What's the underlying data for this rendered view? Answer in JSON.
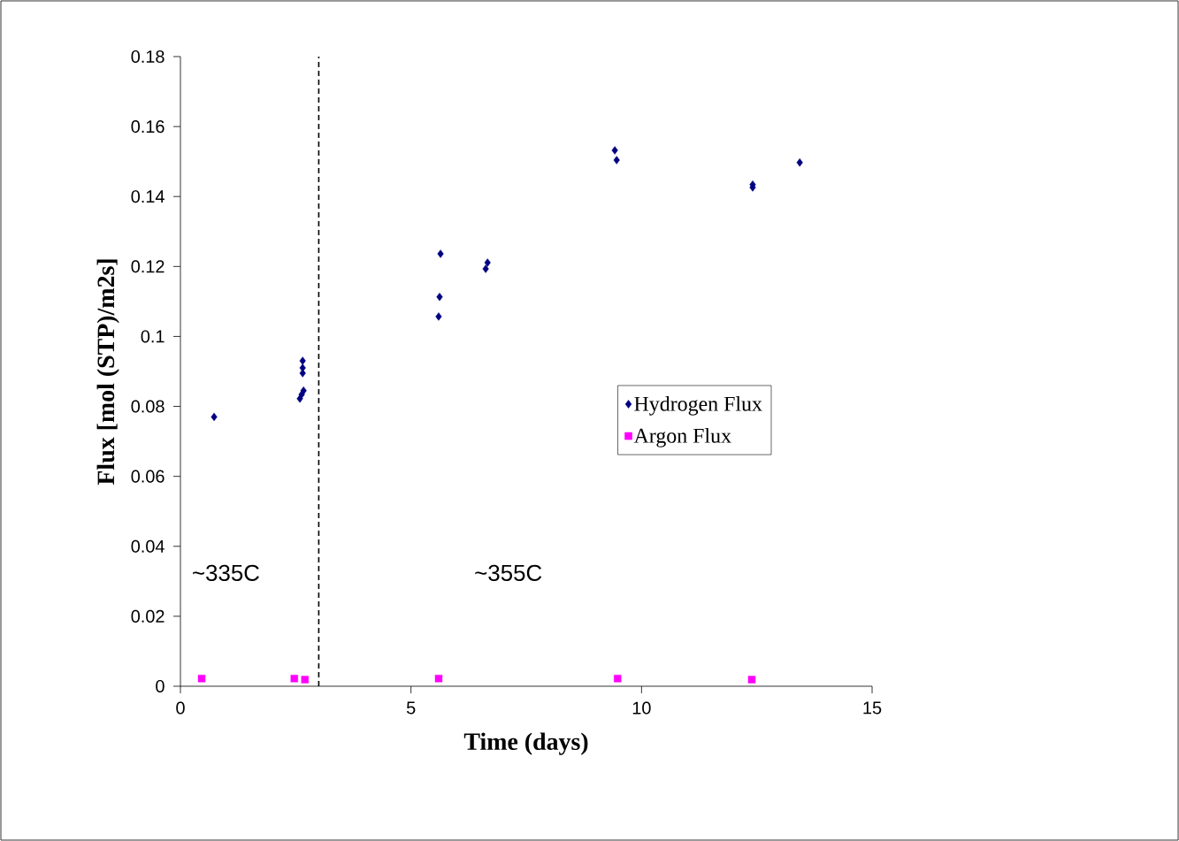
{
  "chart_data": {
    "type": "scatter",
    "xlabel": "Time (days)",
    "ylabel": "Flux [mol (STP)/m2s]",
    "xlim": [
      0,
      15
    ],
    "ylim": [
      0,
      0.18
    ],
    "xticks": [
      0,
      5,
      10,
      15
    ],
    "yticks": [
      0,
      0.02,
      0.04,
      0.06,
      0.08,
      0.1,
      0.12,
      0.14,
      0.16,
      0.18
    ],
    "grid": false,
    "legend": "right",
    "ref_lines": [
      {
        "axis": "x",
        "value": 3,
        "line_style": "dashed",
        "color": "#000000"
      }
    ],
    "annotations": [
      "~335C",
      "~355C"
    ],
    "series": [
      {
        "name": "Hydrogen Flux",
        "color": "#000080",
        "marker": "diamond",
        "x": [
          0.73,
          2.65,
          2.65,
          2.65,
          2.67,
          2.63,
          2.59,
          5.64,
          5.62,
          5.6,
          6.66,
          6.62,
          9.42,
          9.46,
          12.41,
          12.41,
          13.43
        ],
        "values": [
          0.077,
          0.093,
          0.091,
          0.0895,
          0.0845,
          0.0834,
          0.0822,
          0.1236,
          0.1113,
          0.1057,
          0.1211,
          0.1193,
          0.1532,
          0.1504,
          0.1434,
          0.1426,
          0.1497
        ]
      },
      {
        "name": "Argon Flux",
        "color": "#ff00ff",
        "marker": "square",
        "x": [
          0.46,
          2.47,
          2.7,
          5.6,
          9.48,
          12.39
        ],
        "values": [
          0.0022,
          0.0022,
          0.0019,
          0.0022,
          0.0022,
          0.0019
        ]
      }
    ]
  }
}
